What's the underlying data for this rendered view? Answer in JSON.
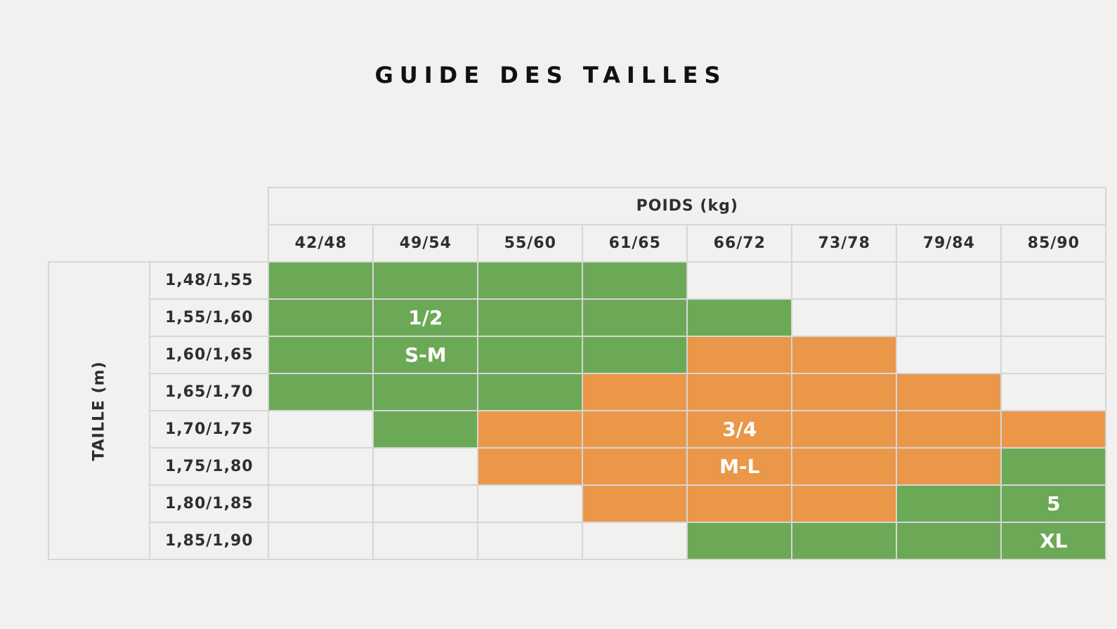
{
  "title": "GUIDE DES TAILLES",
  "weight_header": "POIDS (kg)",
  "height_header": "TAILLE (m)",
  "colors": {
    "small": "#6ca956",
    "medium": "#ea9749",
    "large": "#6ca956",
    "empty": "#f1f1ef"
  },
  "weight_columns": [
    "42/48",
    "49/54",
    "55/60",
    "61/65",
    "66/72",
    "73/78",
    "79/84",
    "85/90"
  ],
  "rows": [
    {
      "height": "1,48/1,55",
      "cells": [
        {
          "c": "g"
        },
        {
          "c": "g"
        },
        {
          "c": "g"
        },
        {
          "c": "g"
        },
        {
          "c": "e"
        },
        {
          "c": "e"
        },
        {
          "c": "e"
        },
        {
          "c": "e"
        }
      ]
    },
    {
      "height": "1,55/1,60",
      "cells": [
        {
          "c": "g"
        },
        {
          "c": "g",
          "t": "1/2"
        },
        {
          "c": "g"
        },
        {
          "c": "g"
        },
        {
          "c": "g"
        },
        {
          "c": "e"
        },
        {
          "c": "e"
        },
        {
          "c": "e"
        }
      ]
    },
    {
      "height": "1,60/1,65",
      "cells": [
        {
          "c": "g"
        },
        {
          "c": "g",
          "t": "S-M"
        },
        {
          "c": "g"
        },
        {
          "c": "g"
        },
        {
          "c": "o"
        },
        {
          "c": "o"
        },
        {
          "c": "e"
        },
        {
          "c": "e"
        }
      ]
    },
    {
      "height": "1,65/1,70",
      "cells": [
        {
          "c": "g"
        },
        {
          "c": "g"
        },
        {
          "c": "g"
        },
        {
          "c": "o"
        },
        {
          "c": "o"
        },
        {
          "c": "o"
        },
        {
          "c": "o"
        },
        {
          "c": "e"
        }
      ]
    },
    {
      "height": "1,70/1,75",
      "cells": [
        {
          "c": "e"
        },
        {
          "c": "g"
        },
        {
          "c": "o"
        },
        {
          "c": "o"
        },
        {
          "c": "o",
          "t": "3/4"
        },
        {
          "c": "o"
        },
        {
          "c": "o"
        },
        {
          "c": "o"
        }
      ]
    },
    {
      "height": "1,75/1,80",
      "cells": [
        {
          "c": "e"
        },
        {
          "c": "e"
        },
        {
          "c": "o"
        },
        {
          "c": "o"
        },
        {
          "c": "o",
          "t": "M-L"
        },
        {
          "c": "o"
        },
        {
          "c": "o"
        },
        {
          "c": "g"
        }
      ]
    },
    {
      "height": "1,80/1,85",
      "cells": [
        {
          "c": "e"
        },
        {
          "c": "e"
        },
        {
          "c": "e"
        },
        {
          "c": "o"
        },
        {
          "c": "o"
        },
        {
          "c": "o"
        },
        {
          "c": "g"
        },
        {
          "c": "g",
          "t": "5"
        }
      ]
    },
    {
      "height": "1,85/1,90",
      "cells": [
        {
          "c": "e"
        },
        {
          "c": "e"
        },
        {
          "c": "e"
        },
        {
          "c": "e"
        },
        {
          "c": "g"
        },
        {
          "c": "g"
        },
        {
          "c": "g"
        },
        {
          "c": "g",
          "t": "XL"
        }
      ]
    }
  ]
}
